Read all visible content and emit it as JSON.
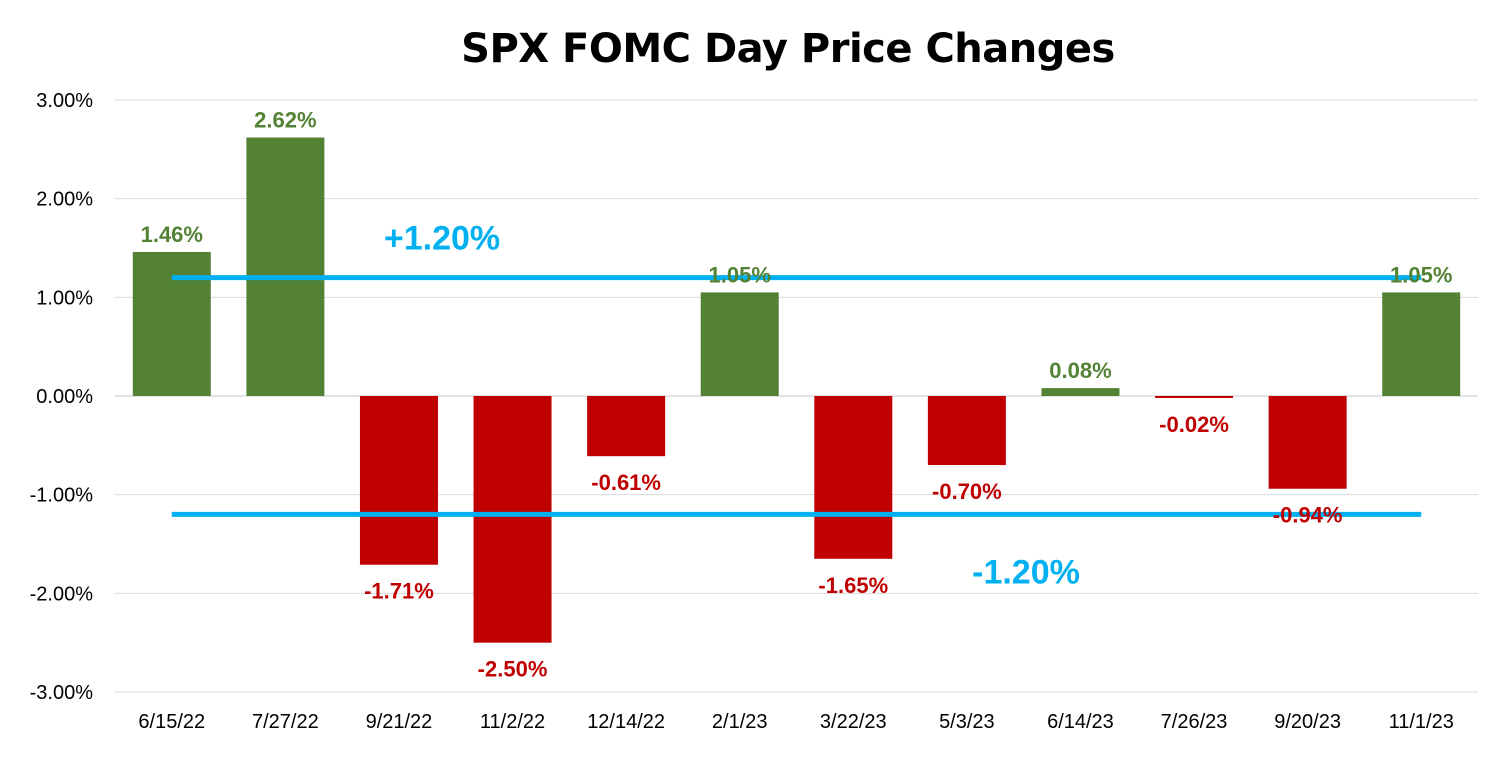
{
  "chart_data": {
    "type": "bar",
    "title": "SPX FOMC Day Price Changes",
    "xlabel": "",
    "ylabel": "",
    "categories": [
      "6/15/22",
      "7/27/22",
      "9/21/22",
      "11/2/22",
      "12/14/22",
      "2/1/23",
      "3/22/23",
      "5/3/23",
      "6/14/23",
      "7/26/23",
      "9/20/23",
      "11/1/23"
    ],
    "values": [
      1.46,
      2.62,
      -1.71,
      -2.5,
      -0.61,
      1.05,
      -1.65,
      -0.7,
      0.08,
      -0.02,
      -0.94,
      1.05
    ],
    "data_labels": [
      "1.46%",
      "2.62%",
      "-1.71%",
      "-2.50%",
      "-0.61%",
      "1.05%",
      "-1.65%",
      "-0.70%",
      "0.08%",
      "-0.02%",
      "-0.94%",
      "1.05%"
    ],
    "ylim": [
      -3,
      3
    ],
    "yticks": [
      3,
      2,
      1,
      0,
      -1,
      -2,
      -3
    ],
    "ytick_labels": [
      "3.00%",
      "2.00%",
      "1.00%",
      "0.00%",
      "-1.00%",
      "-2.00%",
      "-3.00%"
    ],
    "grid": true,
    "reference_lines": [
      {
        "value": 1.2,
        "label": "+1.20%"
      },
      {
        "value": -1.2,
        "label": "-1.20%"
      }
    ],
    "colors": {
      "positive": "#548235",
      "negative": "#C00000",
      "reference": "#00B0F0",
      "grid": "#D9D9D9"
    }
  }
}
